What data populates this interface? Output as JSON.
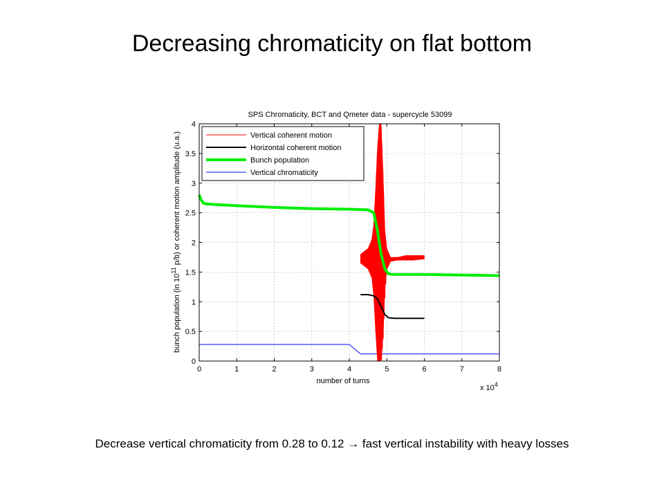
{
  "slide": {
    "title": "Decreasing chromaticity on flat bottom",
    "caption_before": "Decrease vertical chromaticity from 0.28 to 0.12 ",
    "caption_arrow": "→",
    "caption_after": " fast vertical instability with heavy losses"
  },
  "chart_data": {
    "type": "line",
    "title": "SPS Chromaticity, BCT and Qmeter data - supercycle 53099",
    "xlabel": "number of turns",
    "xlabel_multiplier": "x 10",
    "xlabel_exponent": "4",
    "ylabel_part1": "bunch population (in 10",
    "ylabel_exponent": "11",
    "ylabel_part2": " p/b) or coherent motion amplitude (u.a.)",
    "xlim": [
      0,
      8
    ],
    "ylim": [
      0,
      4
    ],
    "xticks": [
      0,
      1,
      2,
      3,
      4,
      5,
      6,
      7,
      8
    ],
    "yticks": [
      0,
      0.5,
      1,
      1.5,
      2,
      2.5,
      3,
      3.5,
      4
    ],
    "xtick_labels": [
      "0",
      "1",
      "2",
      "3",
      "4",
      "5",
      "6",
      "7",
      "8"
    ],
    "ytick_labels": [
      "0",
      "0.5",
      "1",
      "1.5",
      "2",
      "2.5",
      "3",
      "3.5",
      "4"
    ],
    "grid": true,
    "legend_position": "top-left",
    "x_units": "x 10^4 turns",
    "series": [
      {
        "name": "Vertical coherent motion",
        "color": "#ff0000",
        "style": "oscillation-envelope",
        "width": 1,
        "x": [
          4.3,
          4.4,
          4.5,
          4.6,
          4.65,
          4.7,
          4.75,
          4.8,
          4.85,
          4.9,
          4.95,
          5.0,
          5.1,
          5.3,
          5.5,
          5.7,
          6.0
        ],
        "upper": [
          1.8,
          1.85,
          1.9,
          2.05,
          2.3,
          2.9,
          3.6,
          4.0,
          4.0,
          3.2,
          2.2,
          1.9,
          1.75,
          1.75,
          1.78,
          1.78,
          1.78
        ],
        "lower": [
          1.65,
          1.6,
          1.55,
          1.4,
          1.1,
          0.5,
          0.0,
          0.0,
          0.0,
          0.4,
          1.2,
          1.55,
          1.68,
          1.7,
          1.7,
          1.7,
          1.72
        ]
      },
      {
        "name": "Horizontal coherent motion",
        "color": "#000000",
        "width": 2,
        "x": [
          4.3,
          4.5,
          4.65,
          4.75,
          4.85,
          4.95,
          5.05,
          5.2,
          5.5,
          6.0
        ],
        "y": [
          1.12,
          1.12,
          1.1,
          1.05,
          0.92,
          0.78,
          0.73,
          0.72,
          0.72,
          0.72
        ]
      },
      {
        "name": "Bunch population",
        "color": "#00ee00",
        "width": 4,
        "x": [
          0,
          0.05,
          0.12,
          0.2,
          0.4,
          1.0,
          2.0,
          3.0,
          4.0,
          4.5,
          4.65,
          4.75,
          4.85,
          4.95,
          5.05,
          5.15,
          5.3,
          6.0,
          7.0,
          8.0
        ],
        "y": [
          2.8,
          2.72,
          2.66,
          2.65,
          2.64,
          2.62,
          2.59,
          2.57,
          2.56,
          2.55,
          2.5,
          2.2,
          1.8,
          1.55,
          1.47,
          1.46,
          1.46,
          1.46,
          1.45,
          1.44
        ]
      },
      {
        "name": "Vertical chromaticity",
        "color": "#0000ff",
        "width": 1,
        "x": [
          0,
          4.0,
          4.3,
          8.0
        ],
        "y": [
          0.28,
          0.28,
          0.12,
          0.12
        ]
      }
    ]
  }
}
